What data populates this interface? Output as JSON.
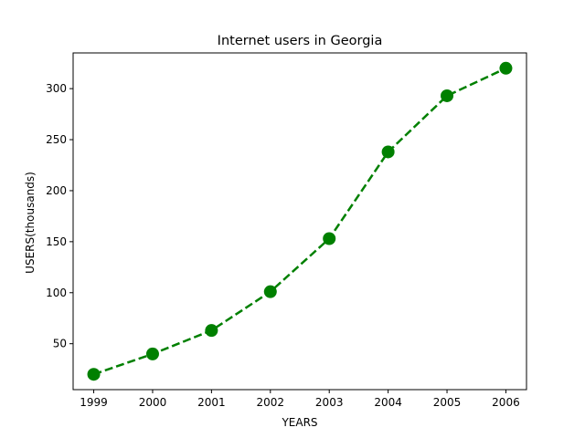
{
  "chart_data": {
    "type": "line",
    "title": "Internet users in Georgia",
    "xlabel": "YEARS",
    "ylabel": "USERS(thousands)",
    "x": [
      1999,
      2000,
      2001,
      2002,
      2003,
      2004,
      2005,
      2006
    ],
    "series": [
      {
        "values": [
          20,
          40,
          63,
          101,
          153,
          238,
          293,
          320
        ],
        "color": "#008000",
        "line_style": "dashed",
        "marker": "circle"
      }
    ],
    "xticks": [
      "1999",
      "2000",
      "2001",
      "2002",
      "2003",
      "2004",
      "2005",
      "2006"
    ],
    "yticks": [
      "50",
      "100",
      "150",
      "200",
      "250",
      "300"
    ],
    "xlim": [
      1998.65,
      2006.35
    ],
    "ylim": [
      5,
      335
    ],
    "grid": false,
    "legend": "none"
  }
}
